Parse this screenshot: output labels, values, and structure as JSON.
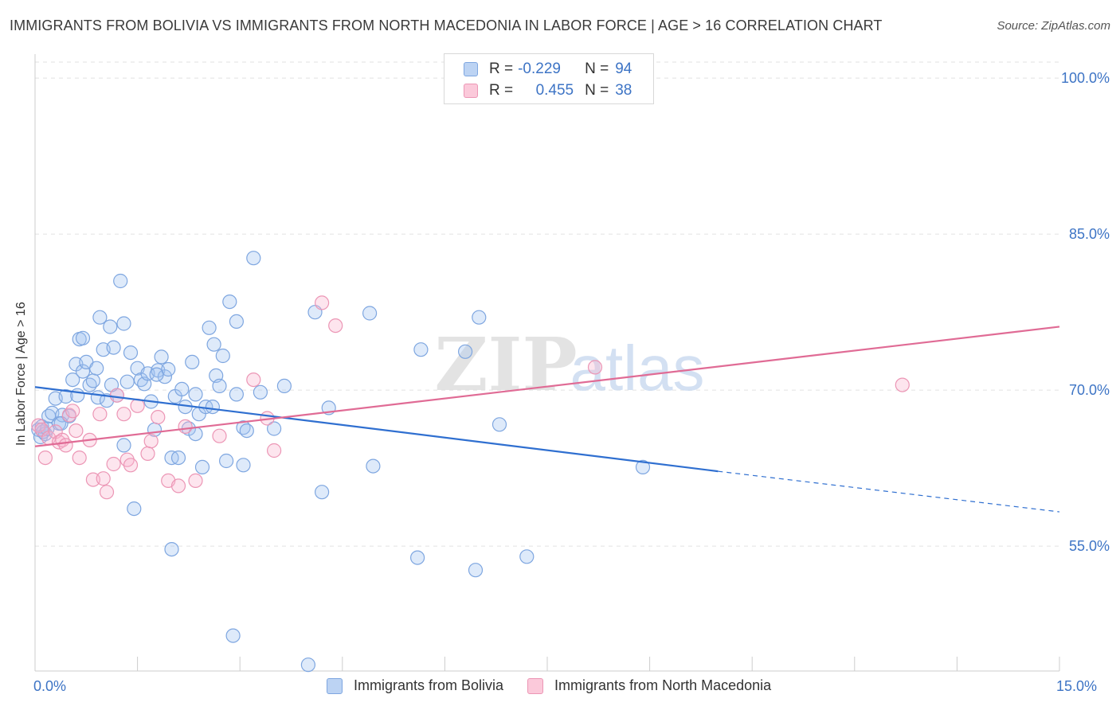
{
  "title": "IMMIGRANTS FROM BOLIVIA VS IMMIGRANTS FROM NORTH MACEDONIA IN LABOR FORCE | AGE > 16 CORRELATION CHART",
  "source": "Source: ZipAtlas.com",
  "watermark": {
    "zip": "ZIP",
    "atlas": "atlas"
  },
  "legend_top": {
    "r_label": "R =",
    "n_label": "N =",
    "rows": [
      {
        "r": "-0.229",
        "n": "94"
      },
      {
        "r": "0.455",
        "n": "38"
      }
    ]
  },
  "chart_data": {
    "type": "scatter",
    "title": "IMMIGRANTS FROM BOLIVIA VS IMMIGRANTS FROM NORTH MACEDONIA IN LABOR FORCE | AGE > 16 CORRELATION CHART",
    "xlabel": "",
    "ylabel": "In Labor Force | Age > 16",
    "xlim": [
      0,
      15
    ],
    "ylim": [
      43,
      102
    ],
    "x_tick_labels": [
      "0.0%",
      "15.0%"
    ],
    "y_ticks": [
      55,
      70,
      85,
      100
    ],
    "y_tick_labels": [
      "55.0%",
      "70.0%",
      "85.0%",
      "100.0%"
    ],
    "grid": true,
    "legend_position": "bottom",
    "series": [
      {
        "name": "Immigrants from Bolivia",
        "color": "#8fb4e8",
        "line_color": "#2f6fd0",
        "trend": {
          "x0": 0,
          "y0": 70.3,
          "x1": 10.0,
          "y1": 62.2,
          "dashed_to_x": 15.0,
          "dashed_to_y": 58.3
        },
        "points": [
          [
            0.05,
            66.2
          ],
          [
            0.08,
            65.5
          ],
          [
            0.1,
            66.5
          ],
          [
            0.12,
            66.0
          ],
          [
            0.15,
            65.8
          ],
          [
            0.18,
            66.3
          ],
          [
            0.2,
            67.5
          ],
          [
            0.25,
            67.8
          ],
          [
            0.3,
            69.2
          ],
          [
            0.35,
            66.8
          ],
          [
            0.4,
            67.6
          ],
          [
            0.45,
            69.4
          ],
          [
            0.5,
            67.5
          ],
          [
            0.55,
            71.0
          ],
          [
            0.6,
            72.5
          ],
          [
            0.65,
            74.9
          ],
          [
            0.7,
            71.8
          ],
          [
            0.75,
            72.7
          ],
          [
            0.8,
            70.5
          ],
          [
            0.85,
            70.9
          ],
          [
            0.9,
            72.1
          ],
          [
            0.92,
            69.3
          ],
          [
            0.95,
            77.0
          ],
          [
            1.0,
            73.9
          ],
          [
            1.05,
            69.0
          ],
          [
            1.1,
            76.1
          ],
          [
            1.15,
            74.1
          ],
          [
            1.2,
            69.5
          ],
          [
            1.25,
            80.5
          ],
          [
            1.3,
            76.4
          ],
          [
            1.3,
            64.7
          ],
          [
            1.35,
            70.8
          ],
          [
            1.4,
            73.6
          ],
          [
            1.45,
            58.6
          ],
          [
            1.5,
            72.1
          ],
          [
            1.55,
            71.0
          ],
          [
            1.6,
            70.6
          ],
          [
            1.65,
            71.6
          ],
          [
            1.7,
            68.9
          ],
          [
            1.75,
            66.2
          ],
          [
            1.8,
            71.9
          ],
          [
            1.85,
            73.2
          ],
          [
            1.9,
            71.3
          ],
          [
            1.95,
            72.0
          ],
          [
            2.0,
            54.7
          ],
          [
            2.0,
            63.5
          ],
          [
            2.05,
            69.4
          ],
          [
            2.1,
            63.5
          ],
          [
            2.15,
            70.1
          ],
          [
            2.2,
            68.4
          ],
          [
            2.25,
            66.3
          ],
          [
            2.3,
            72.7
          ],
          [
            2.35,
            69.6
          ],
          [
            2.35,
            65.8
          ],
          [
            2.4,
            67.7
          ],
          [
            2.45,
            62.6
          ],
          [
            2.5,
            68.4
          ],
          [
            2.55,
            76.0
          ],
          [
            2.6,
            68.4
          ],
          [
            2.65,
            71.4
          ],
          [
            2.7,
            70.4
          ],
          [
            2.75,
            73.3
          ],
          [
            2.8,
            63.2
          ],
          [
            2.85,
            78.5
          ],
          [
            2.9,
            46.4
          ],
          [
            2.95,
            76.6
          ],
          [
            2.95,
            69.6
          ],
          [
            3.05,
            66.4
          ],
          [
            3.1,
            66.1
          ],
          [
            3.05,
            62.8
          ],
          [
            3.2,
            82.7
          ],
          [
            3.3,
            69.8
          ],
          [
            3.5,
            66.3
          ],
          [
            3.65,
            70.4
          ],
          [
            4.0,
            43.6
          ],
          [
            4.1,
            77.5
          ],
          [
            4.2,
            60.2
          ],
          [
            4.3,
            68.3
          ],
          [
            4.9,
            77.4
          ],
          [
            4.95,
            62.7
          ],
          [
            5.6,
            53.9
          ],
          [
            5.65,
            73.9
          ],
          [
            6.3,
            73.7
          ],
          [
            6.45,
            52.7
          ],
          [
            6.5,
            77.0
          ],
          [
            6.8,
            66.7
          ],
          [
            7.2,
            54.0
          ],
          [
            8.9,
            62.6
          ],
          [
            1.12,
            70.5
          ],
          [
            0.7,
            75.0
          ],
          [
            0.38,
            66.8
          ],
          [
            1.78,
            71.5
          ],
          [
            2.62,
            74.4
          ],
          [
            0.62,
            69.5
          ]
        ]
      },
      {
        "name": "Immigrants from North Macedonia",
        "color": "#f5a8c3",
        "line_color": "#e06b95",
        "trend": {
          "x0": 0,
          "y0": 64.6,
          "x1": 15.0,
          "y1": 76.1
        },
        "points": [
          [
            0.05,
            66.6
          ],
          [
            0.1,
            66.2
          ],
          [
            0.15,
            63.5
          ],
          [
            0.2,
            65.4
          ],
          [
            0.3,
            66.0
          ],
          [
            0.35,
            65.0
          ],
          [
            0.4,
            65.2
          ],
          [
            0.45,
            64.7
          ],
          [
            0.5,
            67.6
          ],
          [
            0.55,
            68.0
          ],
          [
            0.6,
            66.1
          ],
          [
            0.65,
            63.5
          ],
          [
            0.8,
            65.2
          ],
          [
            0.85,
            61.4
          ],
          [
            0.95,
            67.7
          ],
          [
            1.0,
            61.5
          ],
          [
            1.05,
            60.2
          ],
          [
            1.15,
            62.9
          ],
          [
            1.2,
            69.5
          ],
          [
            1.3,
            67.7
          ],
          [
            1.35,
            63.3
          ],
          [
            1.4,
            62.8
          ],
          [
            1.5,
            68.5
          ],
          [
            1.65,
            63.9
          ],
          [
            1.7,
            65.1
          ],
          [
            1.8,
            67.4
          ],
          [
            1.95,
            61.3
          ],
          [
            2.1,
            60.8
          ],
          [
            2.2,
            66.5
          ],
          [
            2.35,
            61.3
          ],
          [
            2.7,
            65.6
          ],
          [
            3.2,
            71.0
          ],
          [
            3.4,
            67.3
          ],
          [
            3.5,
            64.2
          ],
          [
            4.2,
            78.4
          ],
          [
            4.4,
            76.2
          ],
          [
            8.2,
            72.2
          ],
          [
            12.7,
            70.5
          ]
        ]
      }
    ]
  }
}
